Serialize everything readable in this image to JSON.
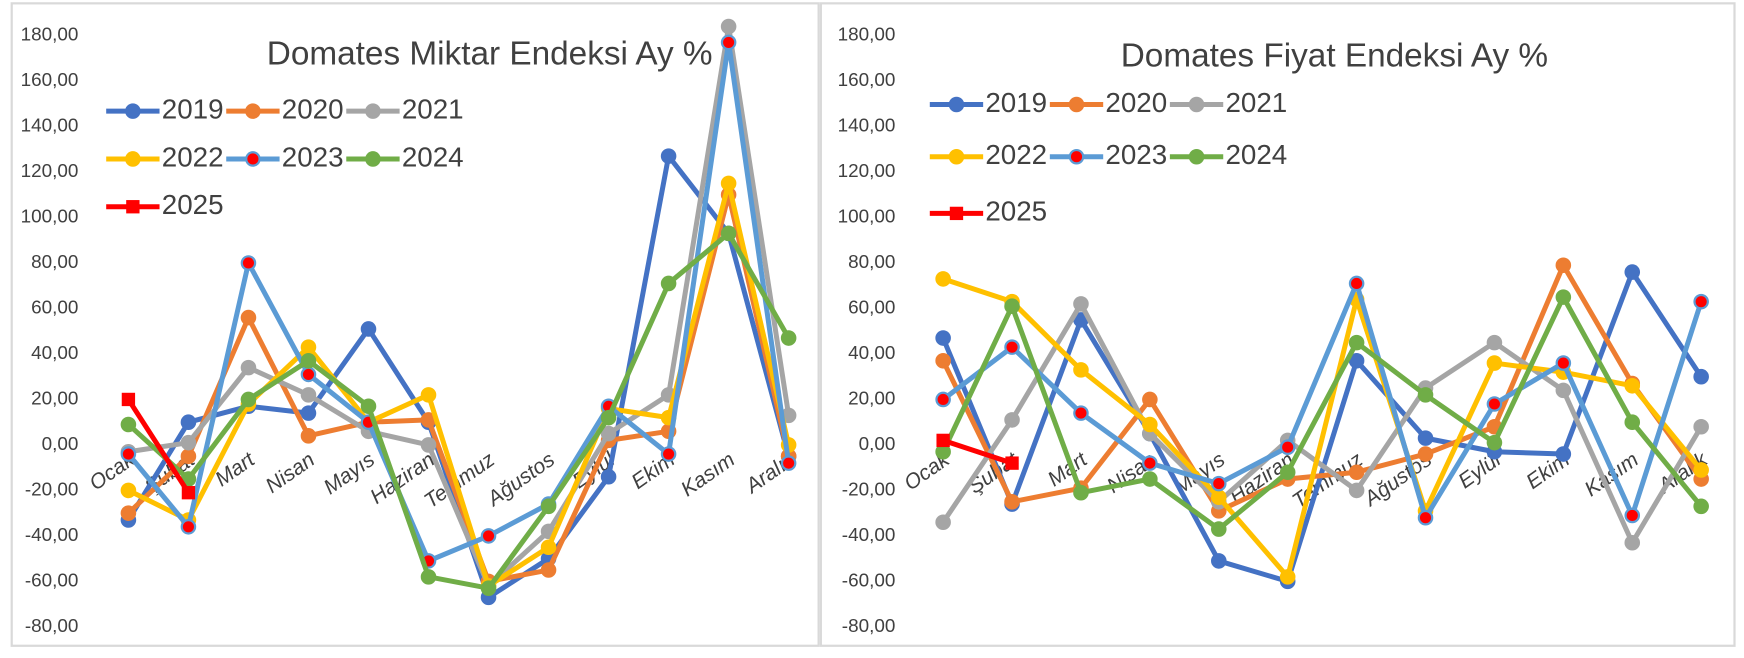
{
  "chart_data": [
    {
      "type": "line",
      "title": "Domates Miktar Endeksi Ay %",
      "categories": [
        "Ocak",
        "Şubat",
        "Mart",
        "Nisan",
        "Mayıs",
        "Haziran",
        "Temmuz",
        "Ağustos",
        "Eylül",
        "Ekim",
        "Kasım",
        "Aralık"
      ],
      "ylim": [
        -80,
        180
      ],
      "yticks": [
        {
          "value": -80,
          "label": "-80,00"
        },
        {
          "value": -60,
          "label": "-60,00"
        },
        {
          "value": -40,
          "label": "-40,00"
        },
        {
          "value": -20,
          "label": "-20,00"
        },
        {
          "value": 0,
          "label": "0,00"
        },
        {
          "value": 20,
          "label": "20,00"
        },
        {
          "value": 40,
          "label": "40,00"
        },
        {
          "value": 60,
          "label": "60,00"
        },
        {
          "value": 80,
          "label": "80,00"
        },
        {
          "value": 100,
          "label": "100,00"
        },
        {
          "value": 120,
          "label": "120,00"
        },
        {
          "value": 140,
          "label": "140,00"
        },
        {
          "value": 160,
          "label": "160,00"
        },
        {
          "value": 180,
          "label": "180,00"
        }
      ],
      "grid": false,
      "legend": "upper left",
      "series": [
        {
          "name": "2019",
          "color": "#4472c4",
          "marker": "circle",
          "marker_fill": "#4472c4",
          "values": [
            -33,
            10,
            17,
            14,
            51,
            10,
            -67,
            -50,
            -14,
            127,
            93,
            -5
          ]
        },
        {
          "name": "2020",
          "color": "#ed7d31",
          "marker": "circle",
          "marker_fill": "#ed7d31",
          "values": [
            -30,
            -5,
            56,
            4,
            10,
            11,
            -60,
            -55,
            2,
            6,
            110,
            -5
          ]
        },
        {
          "name": "2021",
          "color": "#a5a5a5",
          "marker": "circle",
          "marker_fill": "#a5a5a5",
          "values": [
            -3,
            1,
            34,
            22,
            6,
            0,
            -62,
            -38,
            5,
            22,
            184,
            13
          ]
        },
        {
          "name": "2022",
          "color": "#ffc000",
          "marker": "circle",
          "marker_fill": "#ffc000",
          "values": [
            -20,
            -33,
            18,
            43,
            10,
            22,
            -62,
            -45,
            16,
            12,
            115,
            0
          ]
        },
        {
          "name": "2023",
          "color": "#5b9bd5",
          "marker": "circle",
          "marker_fill": "#ff0000",
          "values": [
            -4,
            -36,
            80,
            31,
            10,
            -51,
            -40,
            -26,
            17,
            -4,
            177,
            -8
          ]
        },
        {
          "name": "2024",
          "color": "#70ad47",
          "marker": "circle",
          "marker_fill": "#70ad47",
          "values": [
            9,
            -15,
            20,
            37,
            17,
            -58,
            -63,
            -27,
            12,
            71,
            93,
            47
          ]
        },
        {
          "name": "2025",
          "color": "#ff0000",
          "marker": "square",
          "marker_fill": "#ff0000",
          "values": [
            20,
            -21,
            null,
            null,
            null,
            null,
            null,
            null,
            null,
            null,
            null,
            null
          ]
        }
      ]
    },
    {
      "type": "line",
      "title": "Domates Fiyat Endeksi Ay %",
      "categories": [
        "Ocak",
        "Şubat",
        "Mart",
        "Nisan",
        "Mayıs",
        "Haziran",
        "Temmuz",
        "Ağustos",
        "Eylül",
        "Ekim",
        "Kasım",
        "Aralık"
      ],
      "ylim": [
        -80,
        180
      ],
      "yticks": [
        {
          "value": -80,
          "label": "-80,00"
        },
        {
          "value": -60,
          "label": "-60,00"
        },
        {
          "value": -40,
          "label": "-40,00"
        },
        {
          "value": -20,
          "label": "-20,00"
        },
        {
          "value": 0,
          "label": "0,00"
        },
        {
          "value": 20,
          "label": "20,00"
        },
        {
          "value": 40,
          "label": "40,00"
        },
        {
          "value": 60,
          "label": "60,00"
        },
        {
          "value": 80,
          "label": "80,00"
        },
        {
          "value": 100,
          "label": "100,00"
        },
        {
          "value": 120,
          "label": "120,00"
        },
        {
          "value": 140,
          "label": "140,00"
        },
        {
          "value": 160,
          "label": "160,00"
        },
        {
          "value": 180,
          "label": "180,00"
        }
      ],
      "grid": false,
      "legend": "upper left",
      "series": [
        {
          "name": "2019",
          "color": "#4472c4",
          "marker": "circle",
          "marker_fill": "#4472c4",
          "values": [
            47,
            -26,
            55,
            5,
            -51,
            -60,
            37,
            3,
            -3,
            -4,
            76,
            30
          ]
        },
        {
          "name": "2020",
          "color": "#ed7d31",
          "marker": "circle",
          "marker_fill": "#ed7d31",
          "values": [
            37,
            -25,
            -19,
            20,
            -29,
            -15,
            -12,
            -4,
            8,
            79,
            27,
            -15
          ]
        },
        {
          "name": "2021",
          "color": "#a5a5a5",
          "marker": "circle",
          "marker_fill": "#a5a5a5",
          "values": [
            -34,
            11,
            62,
            5,
            -25,
            2,
            -20,
            25,
            45,
            24,
            -43,
            8
          ]
        },
        {
          "name": "2022",
          "color": "#ffc000",
          "marker": "circle",
          "marker_fill": "#ffc000",
          "values": [
            73,
            63,
            33,
            9,
            -23,
            -58,
            64,
            -29,
            36,
            32,
            26,
            -11
          ]
        },
        {
          "name": "2023",
          "color": "#5b9bd5",
          "marker": "circle",
          "marker_fill": "#ff0000",
          "values": [
            20,
            43,
            14,
            -8,
            -17,
            -1,
            71,
            -32,
            18,
            36,
            -31,
            63
          ]
        },
        {
          "name": "2024",
          "color": "#70ad47",
          "marker": "circle",
          "marker_fill": "#70ad47",
          "values": [
            -3,
            61,
            -21,
            -15,
            -37,
            -12,
            45,
            22,
            1,
            65,
            10,
            -27
          ]
        },
        {
          "name": "2025",
          "color": "#ff0000",
          "marker": "square",
          "marker_fill": "#ff0000",
          "values": [
            2,
            -8,
            null,
            null,
            null,
            null,
            null,
            null,
            null,
            null,
            null,
            null
          ]
        }
      ]
    }
  ]
}
